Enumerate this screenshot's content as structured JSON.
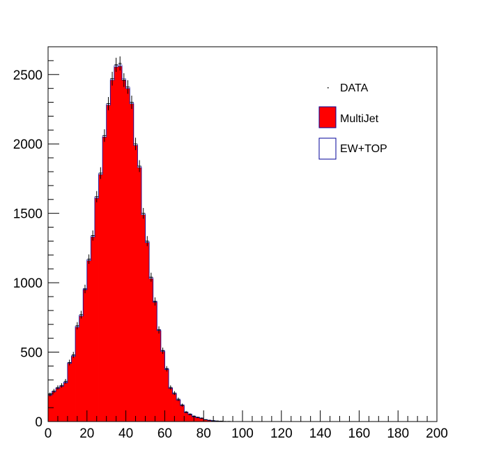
{
  "chart_data": {
    "type": "bar",
    "title": "",
    "xlabel": "",
    "ylabel": "",
    "xlim": [
      0,
      200
    ],
    "ylim": [
      0,
      2700
    ],
    "bin_width": 2,
    "x_ticks": [
      0,
      20,
      40,
      60,
      80,
      100,
      120,
      140,
      160,
      180,
      200
    ],
    "y_ticks": [
      0,
      500,
      1000,
      1500,
      2000,
      2500
    ],
    "grid": false,
    "legend_position": "top-right",
    "series": [
      {
        "name": "MultiJet",
        "kind": "filled-histogram",
        "color": "#ff0000",
        "edge_color": "#000099",
        "values": [
          190,
          215,
          240,
          255,
          280,
          420,
          470,
          680,
          760,
          950,
          1160,
          1330,
          1610,
          1780,
          2050,
          2280,
          2460,
          2555,
          2560,
          2460,
          2400,
          2290,
          1990,
          1830,
          1490,
          1290,
          1030,
          860,
          655,
          505,
          375,
          240,
          200,
          155,
          115,
          65,
          50,
          35,
          28,
          22,
          12,
          8,
          5,
          3,
          2,
          0,
          0,
          0,
          0,
          0
        ]
      },
      {
        "name": "EW+TOP",
        "kind": "filled-histogram",
        "color": "#ffffff",
        "edge_color": "#000099",
        "values": [
          5,
          5,
          5,
          5,
          5,
          5,
          5,
          8,
          8,
          8,
          8,
          8,
          10,
          10,
          10,
          10,
          10,
          10,
          10,
          10,
          10,
          10,
          10,
          10,
          10,
          8,
          8,
          8,
          8,
          8,
          8,
          6,
          6,
          6,
          6,
          5,
          5,
          5,
          4,
          4,
          3,
          2,
          2,
          1,
          1,
          1,
          0,
          0,
          0,
          0
        ]
      },
      {
        "name": "DATA",
        "kind": "points-with-errors",
        "color": "#000000",
        "values": [
          195,
          220,
          245,
          260,
          290,
          425,
          480,
          690,
          770,
          955,
          1170,
          1340,
          1620,
          1790,
          2060,
          2290,
          2470,
          2570,
          2580,
          2460,
          2410,
          2300,
          2000,
          1840,
          1500,
          1300,
          1040,
          865,
          660,
          510,
          380,
          245,
          205,
          160,
          118,
          68,
          52,
          38,
          30,
          24,
          13,
          9,
          6,
          4,
          3,
          1,
          1,
          0,
          0,
          0
        ]
      }
    ]
  },
  "legend": {
    "items": [
      {
        "label": "DATA"
      },
      {
        "label": "MultiJet"
      },
      {
        "label": "EW+TOP"
      }
    ]
  }
}
